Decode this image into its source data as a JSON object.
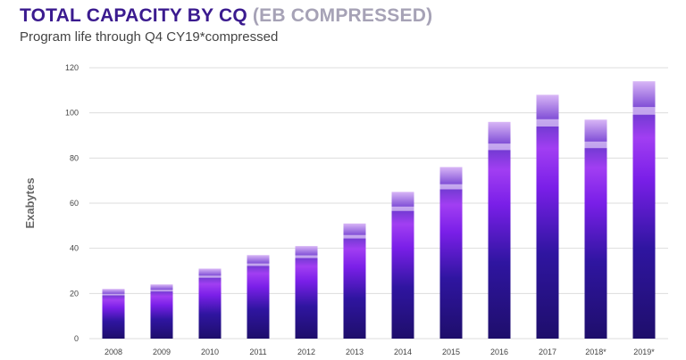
{
  "title": "TOTAL CAPACITY BY CQ",
  "title_suffix": "(EB COMPRESSED)",
  "subtitle": "Program life through Q4 CY19*compressed",
  "chart_data": {
    "type": "bar",
    "ylabel": "Exabytes",
    "ylim": [
      0,
      120
    ],
    "yticks": [
      0,
      20,
      40,
      60,
      80,
      100,
      120
    ],
    "grid": true,
    "categories": [
      "2008",
      "2009",
      "2010",
      "2011",
      "2012",
      "2013",
      "2014",
      "2015",
      "2016",
      "2017",
      "2018*",
      "2019*"
    ],
    "values": [
      22,
      24,
      31,
      37,
      41,
      51,
      65,
      76,
      96,
      108,
      97,
      114
    ]
  },
  "colors": {
    "title": "#3b1b8f",
    "title_suffix": "#a6a2b6",
    "bar_dark": "#1e0e6b",
    "bar_mid": "#5b22d6",
    "bar_bright": "#9b2ff0",
    "bar_light": "#cfa8f5"
  }
}
